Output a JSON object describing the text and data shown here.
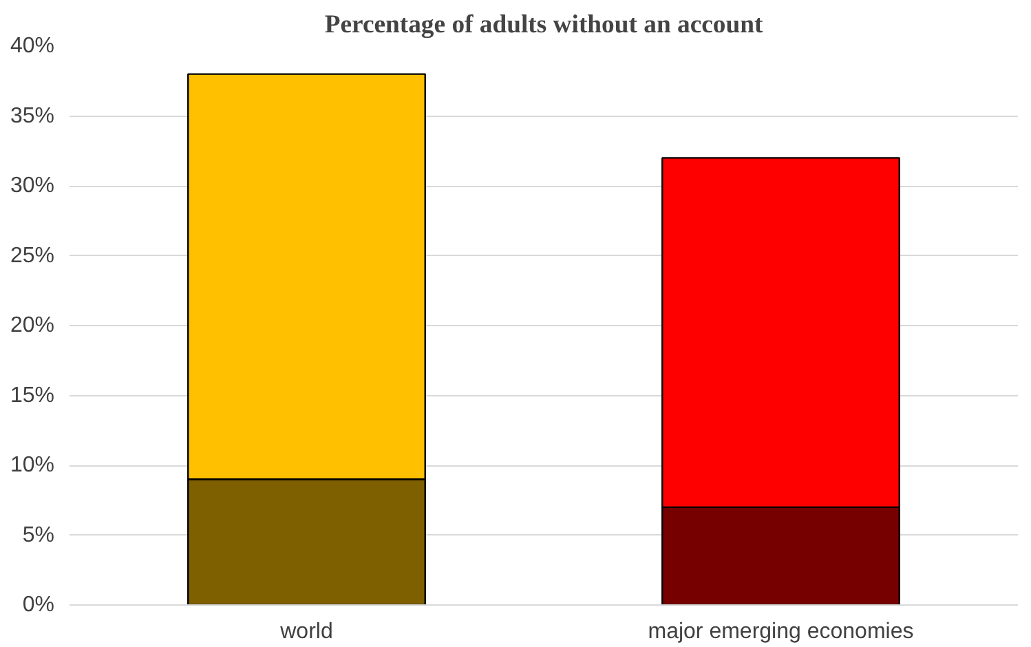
{
  "chart_data": {
    "type": "bar",
    "title": "Percentage of adults without an account",
    "stacked": true,
    "categories": [
      "world",
      "major emerging economies"
    ],
    "series": [
      {
        "colors": [
          "#7f6000",
          "#760000"
        ],
        "values": [
          9,
          7
        ]
      },
      {
        "colors": [
          "#ffc000",
          "#ff0000"
        ],
        "values": [
          29,
          25
        ]
      }
    ],
    "ylim": [
      0,
      40
    ],
    "yticks": [
      {
        "value": 0,
        "label": "0%"
      },
      {
        "value": 5,
        "label": "5%"
      },
      {
        "value": 10,
        "label": "10%"
      },
      {
        "value": 15,
        "label": "15%"
      },
      {
        "value": 20,
        "label": "20%"
      },
      {
        "value": 25,
        "label": "25%"
      },
      {
        "value": 30,
        "label": "30%"
      },
      {
        "value": 35,
        "label": "35%"
      },
      {
        "value": 40,
        "label": "40%"
      }
    ],
    "grid": "y"
  }
}
